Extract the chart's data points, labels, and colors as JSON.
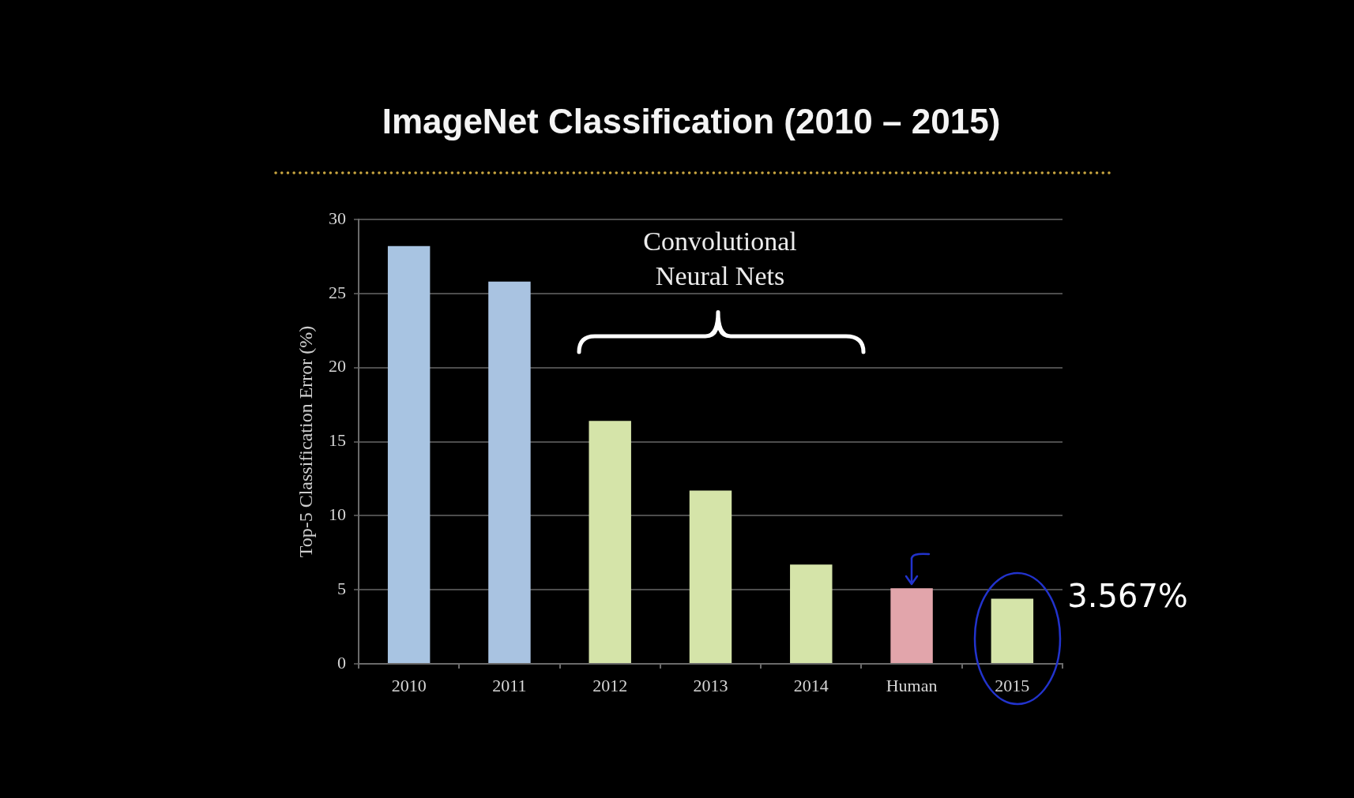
{
  "chart_data": {
    "type": "bar",
    "title": "ImageNet Classification (2010 – 2015)",
    "ylabel": "Top-5 Classification Error (%)",
    "categories": [
      "2010",
      "2011",
      "2012",
      "2013",
      "2014",
      "Human",
      "2015"
    ],
    "values": [
      28.2,
      25.8,
      16.4,
      11.7,
      6.7,
      5.1,
      4.4
    ],
    "colors": [
      "#a8c4e2",
      "#a9c3e1",
      "#d5e4a9",
      "#d5e4a9",
      "#d5e4a9",
      "#e2a5ab",
      "#d5e4a9"
    ],
    "ylim": [
      0,
      30
    ],
    "yticks": [
      0,
      5,
      10,
      15,
      20,
      25,
      30
    ],
    "grid": "y",
    "annotations": [
      "Convolutional Neural Nets",
      {
        "text": "3.567%",
        "x": "2015",
        "y": 4.4
      }
    ]
  }
}
